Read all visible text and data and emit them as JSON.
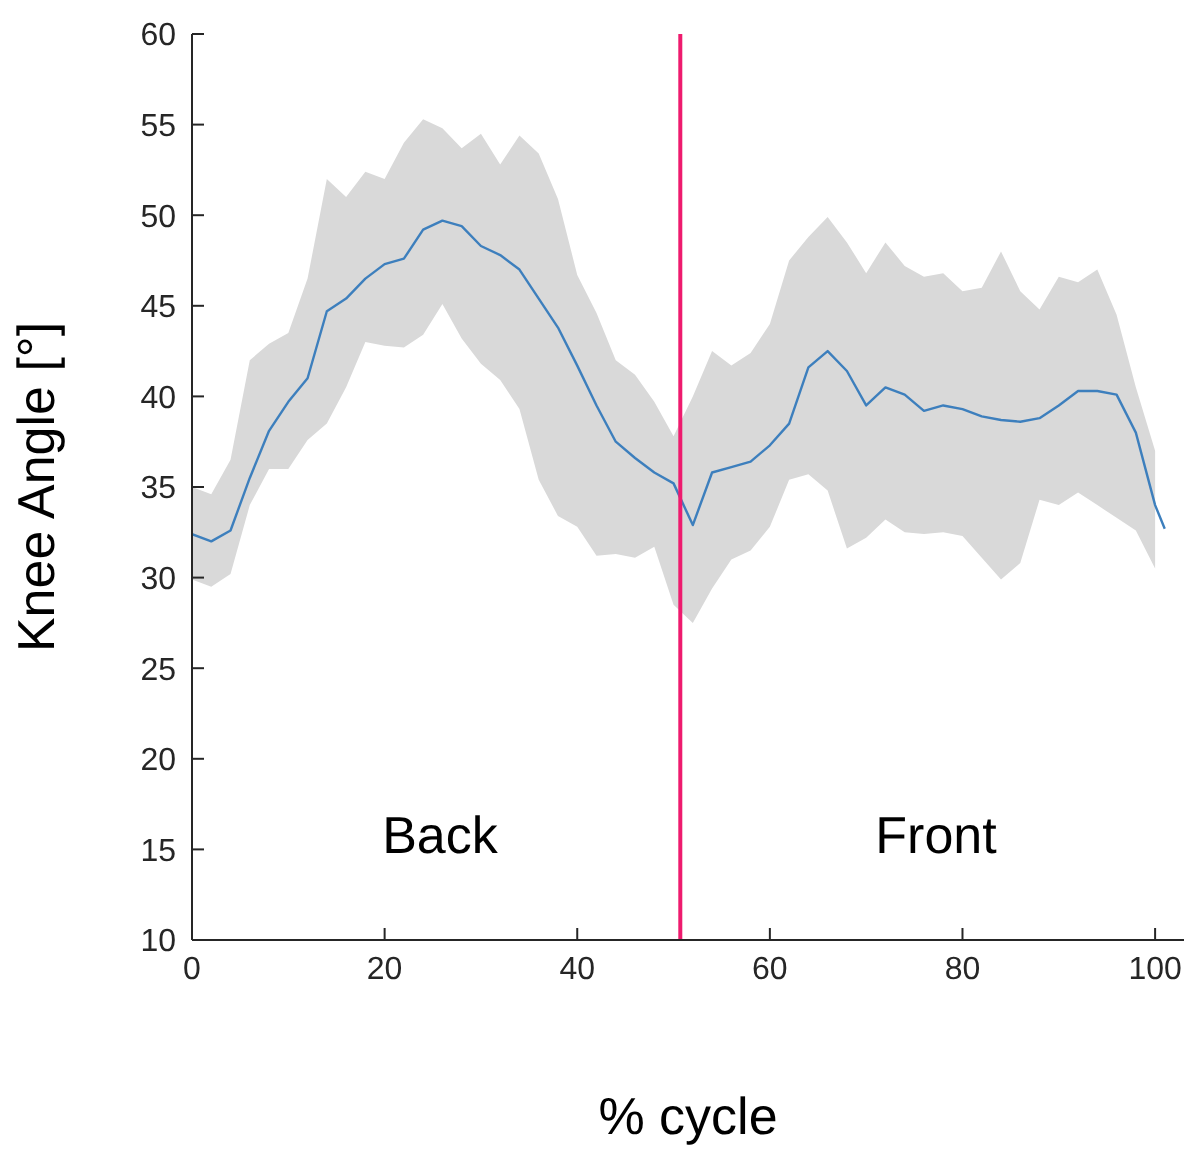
{
  "chart_data": {
    "type": "line",
    "xlabel": "% cycle",
    "ylabel": "Knee Angle [°]",
    "x": [
      0,
      2,
      4,
      6,
      8,
      10,
      12,
      14,
      16,
      18,
      20,
      22,
      24,
      26,
      28,
      30,
      32,
      34,
      36,
      38,
      40,
      42,
      44,
      46,
      48,
      50,
      52,
      54,
      56,
      58,
      60,
      62,
      64,
      66,
      68,
      70,
      72,
      74,
      76,
      78,
      80,
      82,
      84,
      86,
      88,
      90,
      92,
      94,
      96,
      98,
      100,
      101
    ],
    "series": [
      {
        "color": "#3d7fbd",
        "values": [
          32.4,
          32.0,
          32.6,
          35.5,
          38.1,
          39.7,
          41.0,
          44.7,
          45.4,
          46.5,
          47.3,
          47.6,
          49.2,
          49.7,
          49.4,
          48.3,
          47.8,
          47.0,
          45.4,
          43.8,
          41.7,
          39.5,
          37.5,
          36.6,
          35.8,
          35.2,
          32.9,
          35.8,
          36.1,
          36.4,
          37.3,
          38.5,
          41.6,
          42.5,
          41.4,
          39.5,
          40.5,
          40.1,
          39.2,
          39.5,
          39.3,
          38.9,
          38.7,
          38.6,
          38.8,
          39.5,
          40.3,
          40.3,
          40.1,
          38.0,
          34.0,
          32.7
        ],
        "upper": [
          35.0,
          34.6,
          36.5,
          42.0,
          42.9,
          43.5,
          46.5,
          52.0,
          51.0,
          52.4,
          52.0,
          54.0,
          55.3,
          54.8,
          53.7,
          54.5,
          52.8,
          54.4,
          53.4,
          50.9,
          46.7,
          44.6,
          42.0,
          41.2,
          39.7,
          37.8,
          40.0,
          42.5,
          41.7,
          42.4,
          44.0,
          47.5,
          48.8,
          49.9,
          48.5,
          46.8,
          48.5,
          47.2,
          46.6,
          46.8,
          45.8,
          46.0,
          48.0,
          45.8,
          44.8,
          46.6,
          46.3,
          47.0,
          44.5,
          40.5,
          37.0,
          null
        ],
        "lower": [
          29.9,
          29.5,
          30.2,
          34.0,
          36.0,
          36.0,
          37.6,
          38.5,
          40.5,
          43.0,
          42.8,
          42.7,
          43.4,
          45.1,
          43.2,
          41.8,
          40.9,
          39.3,
          35.4,
          33.4,
          32.8,
          31.2,
          31.3,
          31.1,
          31.7,
          28.5,
          27.5,
          29.4,
          31.0,
          31.5,
          32.8,
          35.4,
          35.7,
          34.8,
          31.6,
          32.2,
          33.2,
          32.5,
          32.4,
          32.5,
          32.3,
          31.1,
          29.9,
          30.8,
          34.3,
          34.0,
          34.7,
          34.0,
          33.3,
          32.6,
          30.5,
          null
        ]
      }
    ],
    "xlim": [
      0,
      103
    ],
    "xticks": [
      0,
      20,
      40,
      60,
      80,
      100
    ],
    "ylim": [
      10,
      60
    ],
    "yticks": [
      10,
      15,
      20,
      25,
      30,
      35,
      40,
      45,
      50,
      55,
      60
    ],
    "grid": false,
    "legend": false,
    "marker": "none",
    "line_style": "solid",
    "ref_lines": [
      {
        "axis": "x",
        "value": 50.7,
        "color": "#ee1b6e"
      }
    ],
    "annotations": [
      "Back",
      "Front"
    ]
  }
}
